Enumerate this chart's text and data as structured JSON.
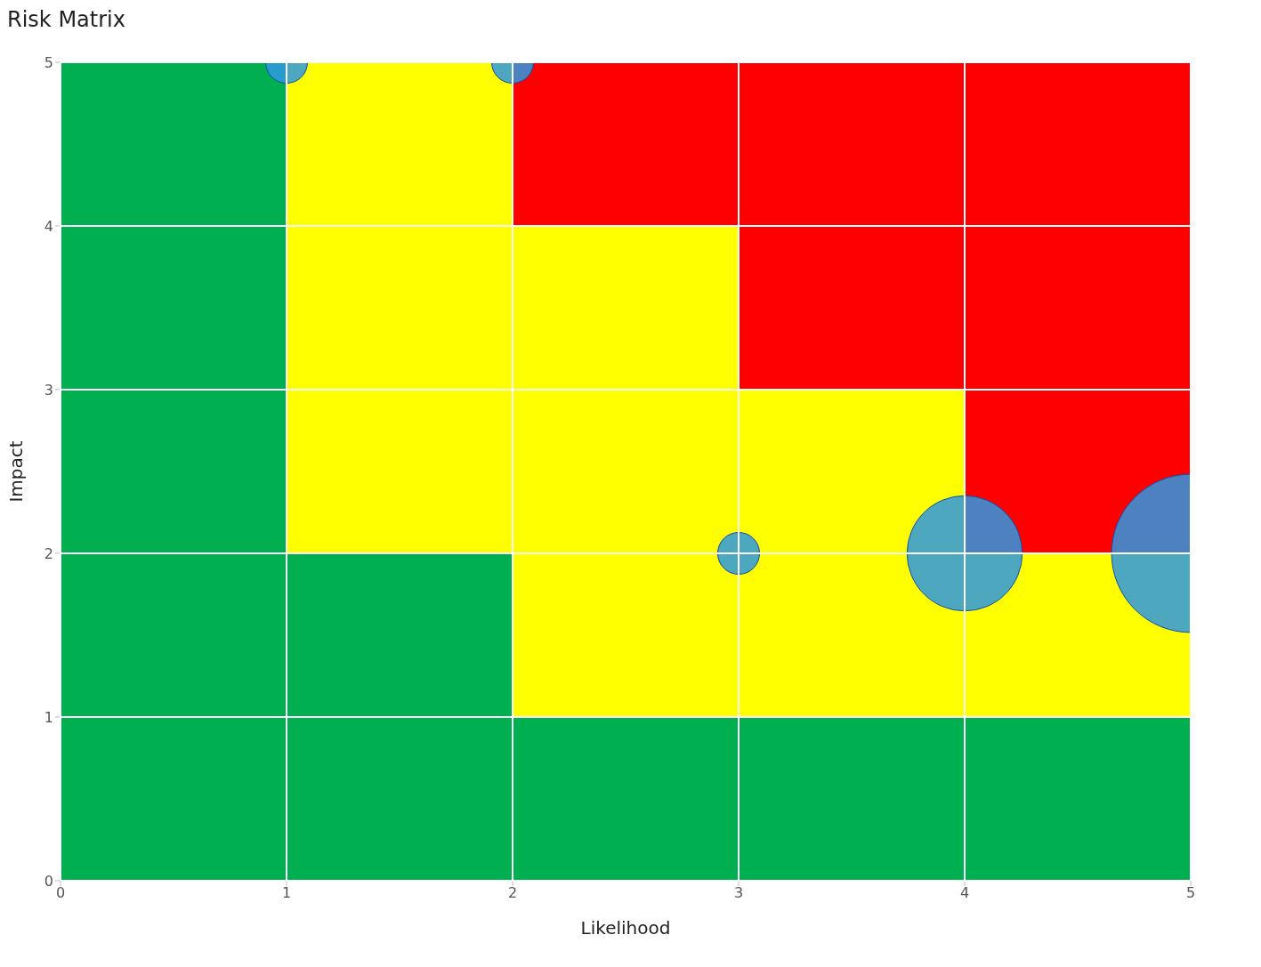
{
  "chart_data": {
    "type": "bubble",
    "title": "Risk Matrix",
    "xlabel": "Likelihood",
    "ylabel": "Impact",
    "x": [
      1,
      2,
      3,
      4,
      5
    ],
    "stacked": true,
    "series": [
      {
        "type": "bar",
        "x": [
          0.5,
          1.5,
          2.5,
          3.5,
          4.5
        ],
        "color": "#00b050",
        "values": [
          5,
          2,
          1,
          1,
          1
        ]
      },
      {
        "type": "bar",
        "x": [
          0.5,
          1.5,
          2.5,
          3.5,
          4.5
        ],
        "color": "#ffff00",
        "values": [
          0,
          3,
          3,
          2,
          1
        ]
      },
      {
        "type": "bar",
        "x": [
          0.5,
          1.5,
          2.5,
          3.5,
          4.5
        ],
        "color": "#ff0000",
        "values": [
          0,
          0,
          1,
          2,
          3
        ]
      },
      {
        "color": "#2e98e0",
        "values": [
          5,
          5,
          2,
          2,
          2
        ],
        "sizes": [
          0.07,
          0.07,
          0.07,
          0.53,
          1
        ]
      }
    ],
    "xlim": [
      0,
      5
    ],
    "xticks": [
      0,
      1,
      2,
      3,
      4,
      5
    ],
    "ylim": [
      0,
      5
    ],
    "yticks": [
      0,
      1,
      2,
      3,
      4,
      5
    ],
    "grid": true,
    "marker": "circle"
  }
}
